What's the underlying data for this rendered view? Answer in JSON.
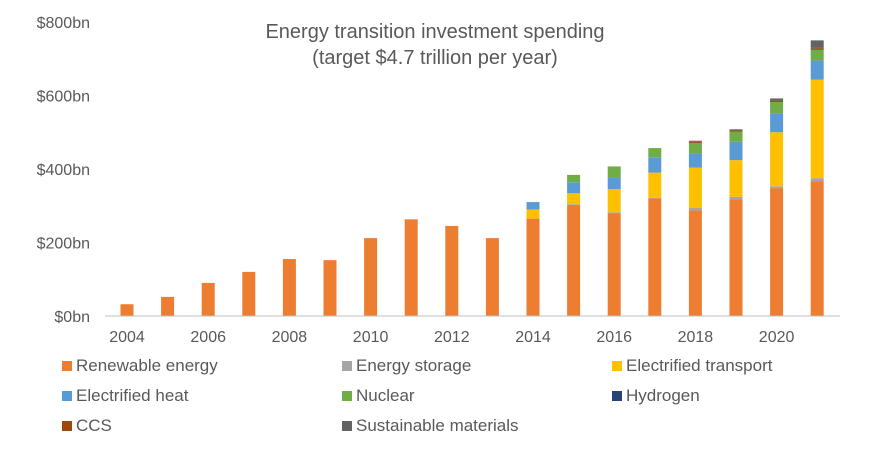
{
  "chart_data": {
    "type": "bar",
    "stacked": true,
    "title": "Energy transition investment spending",
    "subtitle": "(target $4.7 trillion per year)",
    "x": [
      2004,
      2005,
      2006,
      2007,
      2008,
      2009,
      2010,
      2011,
      2012,
      2013,
      2014,
      2015,
      2016,
      2017,
      2018,
      2019,
      2020,
      2021
    ],
    "x_tick_labels": [
      "2004",
      "2006",
      "2008",
      "2010",
      "2012",
      "2014",
      "2016",
      "2018",
      "2020"
    ],
    "x_tick_values": [
      2004,
      2006,
      2008,
      2010,
      2012,
      2014,
      2016,
      2018,
      2020
    ],
    "y_tick_labels": [
      "$0bn",
      "$200bn",
      "$400bn",
      "$600bn",
      "$800bn"
    ],
    "y_tick_values": [
      0,
      200,
      400,
      600,
      800
    ],
    "ylim": [
      0,
      800
    ],
    "grid": false,
    "legend_position": "bottom",
    "series": [
      {
        "name": "Renewable energy",
        "color": "#ED7D31",
        "values": [
          32,
          52,
          90,
          120,
          155,
          152,
          212,
          263,
          245,
          212,
          265,
          302,
          280,
          320,
          288,
          318,
          348,
          367
        ]
      },
      {
        "name": "Energy storage",
        "color": "#A5A5A5",
        "values": [
          0,
          0,
          0,
          0,
          0,
          0,
          0,
          0,
          0,
          0,
          0,
          2,
          2,
          2,
          6,
          6,
          5,
          8
        ]
      },
      {
        "name": "Electrified transport",
        "color": "#FFC000",
        "values": [
          0,
          0,
          0,
          0,
          0,
          0,
          0,
          0,
          0,
          0,
          25,
          30,
          63,
          68,
          110,
          100,
          147,
          268
        ]
      },
      {
        "name": "Electrified heat",
        "color": "#5B9BD5",
        "values": [
          0,
          0,
          0,
          0,
          0,
          0,
          0,
          0,
          0,
          0,
          20,
          30,
          32,
          42,
          37,
          50,
          50,
          52
        ]
      },
      {
        "name": "Nuclear",
        "color": "#70AD47",
        "values": [
          0,
          0,
          0,
          0,
          0,
          0,
          0,
          0,
          0,
          0,
          0,
          20,
          30,
          25,
          30,
          28,
          32,
          30
        ]
      },
      {
        "name": "Hydrogen",
        "color": "#264478",
        "values": [
          0,
          0,
          0,
          0,
          0,
          0,
          0,
          0,
          0,
          0,
          0,
          0,
          0,
          0,
          0,
          0,
          0,
          2
        ]
      },
      {
        "name": "CCS",
        "color": "#9E480E",
        "values": [
          0,
          0,
          0,
          0,
          0,
          0,
          0,
          0,
          0,
          0,
          0,
          0,
          0,
          0,
          3,
          3,
          4,
          4
        ]
      },
      {
        "name": "Sustainable materials",
        "color": "#636363",
        "values": [
          0,
          0,
          0,
          0,
          0,
          0,
          0,
          0,
          0,
          0,
          0,
          0,
          0,
          0,
          3,
          3,
          6,
          19
        ]
      }
    ]
  }
}
